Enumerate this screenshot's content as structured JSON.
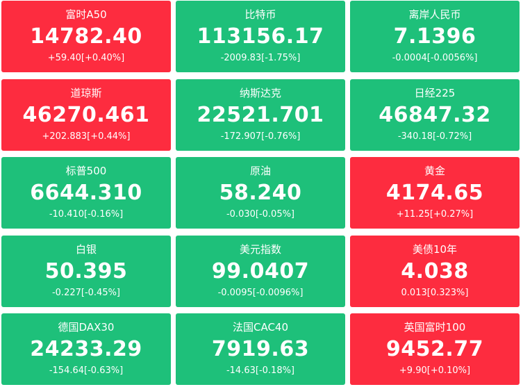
{
  "colors": {
    "up": "#fd2c3f",
    "down": "#1ec07a",
    "text": "#ffffff"
  },
  "tiles": [
    {
      "name": "富时A50",
      "price": "14782.40",
      "change": "+59.40[+0.40%]",
      "direction": "up"
    },
    {
      "name": "比特币",
      "price": "113156.17",
      "change": "-2009.83[-1.75%]",
      "direction": "down"
    },
    {
      "name": "离岸人民币",
      "price": "7.1396",
      "change": "-0.0004[-0.0056%]",
      "direction": "down"
    },
    {
      "name": "道琼斯",
      "price": "46270.461",
      "change": "+202.883[+0.44%]",
      "direction": "up"
    },
    {
      "name": "纳斯达克",
      "price": "22521.701",
      "change": "-172.907[-0.76%]",
      "direction": "down"
    },
    {
      "name": "日经225",
      "price": "46847.32",
      "change": "-340.18[-0.72%]",
      "direction": "down"
    },
    {
      "name": "标普500",
      "price": "6644.310",
      "change": "-10.410[-0.16%]",
      "direction": "down"
    },
    {
      "name": "原油",
      "price": "58.240",
      "change": "-0.030[-0.05%]",
      "direction": "down"
    },
    {
      "name": "黄金",
      "price": "4174.65",
      "change": "+11.25[+0.27%]",
      "direction": "up"
    },
    {
      "name": "白银",
      "price": "50.395",
      "change": "-0.227[-0.45%]",
      "direction": "down"
    },
    {
      "name": "美元指数",
      "price": "99.0407",
      "change": "-0.0095[-0.0096%]",
      "direction": "down"
    },
    {
      "name": "美债10年",
      "price": "4.038",
      "change": "0.013[0.323%]",
      "direction": "up"
    },
    {
      "name": "德国DAX30",
      "price": "24233.29",
      "change": "-154.64[-0.63%]",
      "direction": "down"
    },
    {
      "name": "法国CAC40",
      "price": "7919.63",
      "change": "-14.63[-0.18%]",
      "direction": "down"
    },
    {
      "name": "英国富时100",
      "price": "9452.77",
      "change": "+9.90[+0.10%]",
      "direction": "up"
    }
  ]
}
